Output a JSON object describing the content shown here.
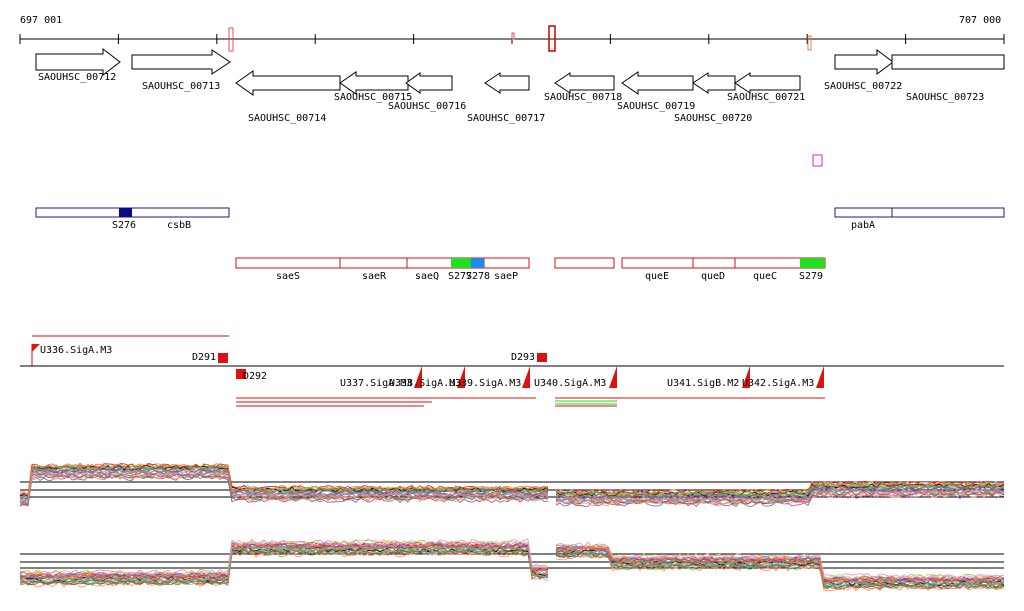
{
  "ruler": {
    "start_label": "697 001",
    "end_label": "707 000"
  },
  "genes": [
    {
      "label": "SAOUHSC_00712",
      "dir": "right"
    },
    {
      "label": "SAOUHSC_00713",
      "dir": "right"
    },
    {
      "label": "SAOUHSC_00714",
      "dir": "left"
    },
    {
      "label": "SAOUHSC_00715",
      "dir": "left"
    },
    {
      "label": "SAOUHSC_00716",
      "dir": "left"
    },
    {
      "label": "SAOUHSC_00717",
      "dir": "left"
    },
    {
      "label": "SAOUHSC_00718",
      "dir": "left"
    },
    {
      "label": "SAOUHSC_00719",
      "dir": "left"
    },
    {
      "label": "SAOUHSC_00720",
      "dir": "left"
    },
    {
      "label": "SAOUHSC_00721",
      "dir": "left"
    },
    {
      "label": "SAOUHSC_00722",
      "dir": "right"
    },
    {
      "label": "SAOUHSC_00723",
      "dir": "right"
    }
  ],
  "blue_track": {
    "labels": [
      "S276",
      "csbB",
      "pabA"
    ]
  },
  "red_track": {
    "labels": [
      "saeS",
      "saeR",
      "saeQ",
      "S277",
      "S278",
      "saeP",
      "queE",
      "queD",
      "queC",
      "S279"
    ]
  },
  "promoters": {
    "labels": [
      "U336.SigA.M3",
      "D291",
      "D292",
      "D293",
      "U337.SigA.M3",
      "U338.SigA.M3",
      "U339.SigA.M3",
      "U340.SigA.M3",
      "U341.SigB.M2",
      "U342.SigA.M3"
    ]
  },
  "colors": {
    "gene_outline": "#000000",
    "blue": "#1a1a8c",
    "red": "#dd1111",
    "green": "#22dd22",
    "light_blue": "#2288ee",
    "magenta": "#dd22dd"
  }
}
